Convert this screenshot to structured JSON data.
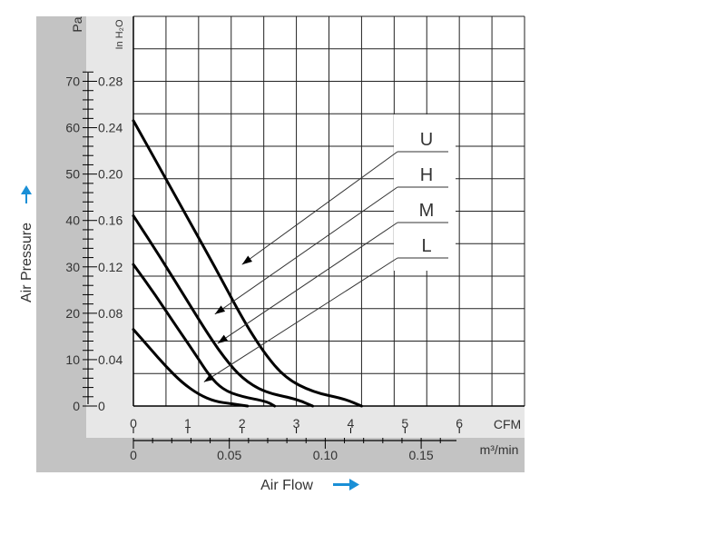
{
  "chart_data": {
    "type": "line",
    "title": "",
    "xlabel": "Air Flow",
    "ylabel": "Air Pressure",
    "x_unit_primary": "CFM",
    "x_unit_secondary": "m³/min",
    "y_unit_primary": "Pa",
    "y_unit_secondary": "In H₂O",
    "xlim": [
      0,
      7.2
    ],
    "ylim": [
      0,
      84
    ],
    "x_ticks_primary": [
      "0",
      "1",
      "2",
      "3",
      "4",
      "5",
      "6"
    ],
    "x_ticks_secondary": [
      "0",
      "0.05",
      "0.10",
      "0.15"
    ],
    "y_ticks_primary": [
      "0",
      "10",
      "20",
      "30",
      "40",
      "50",
      "60",
      "70"
    ],
    "y_ticks_secondary": [
      "0",
      "0.04",
      "0.08",
      "0.12",
      "0.16",
      "0.20",
      "0.24",
      "0.28"
    ],
    "grid": true,
    "series": [
      {
        "name": "U",
        "points": [
          [
            0,
            61.5
          ],
          [
            0.5,
            51
          ],
          [
            1,
            40.5
          ],
          [
            1.5,
            30
          ],
          [
            2,
            19
          ],
          [
            2.4,
            11.5
          ],
          [
            2.8,
            6
          ],
          [
            3.3,
            3
          ],
          [
            3.9,
            1.5
          ],
          [
            4.2,
            0
          ]
        ]
      },
      {
        "name": "H",
        "points": [
          [
            0,
            41
          ],
          [
            0.5,
            32
          ],
          [
            1,
            22.5
          ],
          [
            1.4,
            15
          ],
          [
            1.7,
            10
          ],
          [
            2,
            6
          ],
          [
            2.4,
            3
          ],
          [
            3,
            1.5
          ],
          [
            3.3,
            0
          ]
        ]
      },
      {
        "name": "M",
        "points": [
          [
            0,
            30.5
          ],
          [
            0.4,
            24
          ],
          [
            0.8,
            17
          ],
          [
            1.15,
            11
          ],
          [
            1.4,
            6.5
          ],
          [
            1.65,
            3.5
          ],
          [
            2,
            2
          ],
          [
            2.45,
            1
          ],
          [
            2.6,
            0
          ]
        ]
      },
      {
        "name": "L",
        "points": [
          [
            0,
            16.5
          ],
          [
            0.3,
            12.5
          ],
          [
            0.6,
            8.5
          ],
          [
            0.9,
            5
          ],
          [
            1.2,
            2.5
          ],
          [
            1.5,
            1
          ],
          [
            1.8,
            0.5
          ],
          [
            2.1,
            0
          ]
        ]
      }
    ],
    "legend": [
      "U",
      "H",
      "M",
      "L"
    ]
  },
  "colors": {
    "panel": "#c3c3c3",
    "axis_band": "#e7e7e7",
    "grid": "#222222",
    "curve": "#000000",
    "arrow": "#1a8fd6"
  }
}
